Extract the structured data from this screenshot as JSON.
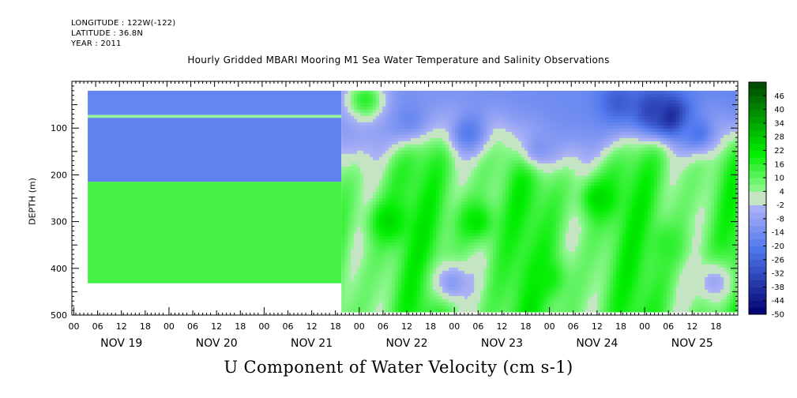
{
  "header": {
    "longitude": "LONGITUDE : 122W(-122)",
    "latitude": "LATITUDE : 36.8N",
    "year": "YEAR : 2011",
    "dataset_title": "Hourly Gridded MBARI Mooring M1 Sea Water Temperature and Salinity Observations"
  },
  "chart_data": {
    "type": "heatmap",
    "title": "U Component of Water Velocity (cm s-1)",
    "ylabel": "DEPTH (m)",
    "xlabel": "",
    "y_axis": {
      "range": [
        0,
        500
      ],
      "inverted": true,
      "ticks": [
        100,
        200,
        300,
        400,
        500
      ]
    },
    "x_axis": {
      "range_hours": [
        0,
        168
      ],
      "hour_ticks": [
        "00",
        "06",
        "12",
        "18",
        "00",
        "06",
        "12",
        "18",
        "00",
        "06",
        "12",
        "18",
        "00",
        "06",
        "12",
        "18",
        "00",
        "06",
        "12",
        "18",
        "00",
        "06",
        "12",
        "18",
        "00",
        "06",
        "12",
        "18"
      ],
      "day_labels": [
        "NOV 19",
        "NOV 20",
        "NOV 21",
        "NOV 22",
        "NOV 23",
        "NOV 24",
        "NOV 25"
      ]
    },
    "colorbar": {
      "levels": [
        "46",
        "40",
        "34",
        "28",
        "22",
        "16",
        "10",
        "4",
        "-2",
        "-8",
        "-14",
        "-20",
        "-26",
        "-32",
        "-38",
        "-44",
        "-50"
      ],
      "range": [
        -50,
        52
      ]
    },
    "field": {
      "missing_before_hour": 4,
      "first_segment_end_hour": 68,
      "first_segment_bottom_depth": 432,
      "bottom_depth": 488,
      "layers": [
        {
          "top": 20,
          "bottom": 72,
          "value": -17
        },
        {
          "top": 72,
          "bottom": 78,
          "value": 4
        },
        {
          "top": 78,
          "bottom": 215,
          "value": -18
        },
        {
          "top": 215,
          "bottom": 432,
          "value": 13
        }
      ],
      "features": [
        {
          "t": 151,
          "z": 75,
          "value": -44
        },
        {
          "t": 146,
          "z": 60,
          "value": -34
        },
        {
          "t": 138,
          "z": 45,
          "value": -28
        },
        {
          "t": 158,
          "z": 110,
          "value": -22
        },
        {
          "t": 100,
          "z": 110,
          "value": -20
        },
        {
          "t": 85,
          "z": 80,
          "value": -16
        },
        {
          "t": 118,
          "z": 140,
          "value": -12
        },
        {
          "t": 74,
          "z": 40,
          "value": 16
        },
        {
          "t": 80,
          "z": 300,
          "value": 24
        },
        {
          "t": 102,
          "z": 300,
          "value": 22
        },
        {
          "t": 133,
          "z": 250,
          "value": 24
        },
        {
          "t": 96,
          "z": 430,
          "value": -10
        },
        {
          "t": 120,
          "z": 420,
          "value": 20
        },
        {
          "t": 162,
          "z": 430,
          "value": -6
        },
        {
          "t": 150,
          "z": 350,
          "value": 16
        }
      ]
    }
  }
}
